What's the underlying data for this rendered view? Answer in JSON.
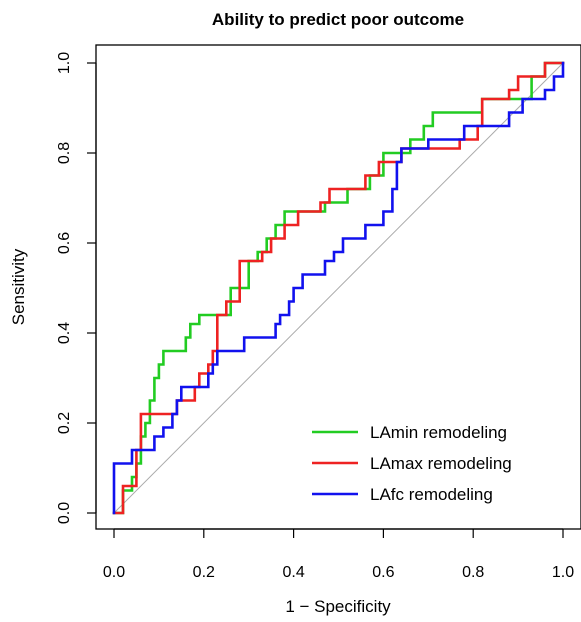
{
  "chart_data": {
    "type": "line",
    "title": "Ability to predict poor outcome",
    "xlabel": "1 − Specificity",
    "ylabel": "Sensitivity",
    "xlim": [
      0,
      1
    ],
    "ylim": [
      0,
      1
    ],
    "x_ticks": [
      "0.0",
      "0.2",
      "0.4",
      "0.6",
      "0.8",
      "1.0"
    ],
    "y_ticks": [
      "0.0",
      "0.2",
      "0.4",
      "0.6",
      "0.8",
      "1.0"
    ],
    "grid": false,
    "legend_position": "bottom-right",
    "reference_line": {
      "x": [
        0,
        1
      ],
      "y": [
        0,
        1
      ],
      "color": "#aaaaaa"
    },
    "series": [
      {
        "name": "LAmin remodeling",
        "color": "#22cc22",
        "x": [
          0.0,
          0.02,
          0.02,
          0.04,
          0.04,
          0.05,
          0.05,
          0.06,
          0.06,
          0.07,
          0.07,
          0.08,
          0.08,
          0.09,
          0.09,
          0.1,
          0.1,
          0.11,
          0.11,
          0.16,
          0.16,
          0.17,
          0.17,
          0.19,
          0.19,
          0.26,
          0.26,
          0.28,
          0.28,
          0.3,
          0.3,
          0.32,
          0.32,
          0.34,
          0.34,
          0.36,
          0.36,
          0.38,
          0.38,
          0.47,
          0.47,
          0.52,
          0.52,
          0.57,
          0.57,
          0.6,
          0.6,
          0.66,
          0.66,
          0.69,
          0.69,
          0.71,
          0.71,
          0.74,
          0.74,
          0.82,
          0.82,
          0.93,
          0.93,
          0.96,
          0.96,
          1.0
        ],
        "y": [
          0.0,
          0.0,
          0.05,
          0.05,
          0.08,
          0.08,
          0.11,
          0.11,
          0.17,
          0.17,
          0.2,
          0.2,
          0.25,
          0.25,
          0.3,
          0.3,
          0.33,
          0.33,
          0.36,
          0.36,
          0.39,
          0.39,
          0.42,
          0.42,
          0.44,
          0.44,
          0.5,
          0.5,
          0.5,
          0.5,
          0.56,
          0.56,
          0.58,
          0.58,
          0.61,
          0.61,
          0.64,
          0.64,
          0.67,
          0.67,
          0.69,
          0.69,
          0.72,
          0.72,
          0.75,
          0.75,
          0.8,
          0.8,
          0.83,
          0.83,
          0.86,
          0.86,
          0.89,
          0.89,
          0.89,
          0.89,
          0.92,
          0.92,
          0.97,
          0.97,
          1.0,
          1.0
        ]
      },
      {
        "name": "LAmax remodeling",
        "color": "#ee2222",
        "x": [
          0.0,
          0.02,
          0.02,
          0.05,
          0.05,
          0.06,
          0.06,
          0.14,
          0.14,
          0.18,
          0.18,
          0.19,
          0.19,
          0.21,
          0.21,
          0.22,
          0.22,
          0.23,
          0.23,
          0.25,
          0.25,
          0.28,
          0.28,
          0.33,
          0.33,
          0.35,
          0.35,
          0.38,
          0.38,
          0.41,
          0.41,
          0.46,
          0.46,
          0.48,
          0.48,
          0.56,
          0.56,
          0.59,
          0.59,
          0.62,
          0.62,
          0.64,
          0.64,
          0.77,
          0.77,
          0.81,
          0.81,
          0.82,
          0.82,
          0.88,
          0.88,
          0.9,
          0.9,
          0.96,
          0.96,
          1.0
        ],
        "y": [
          0.0,
          0.0,
          0.06,
          0.06,
          0.14,
          0.14,
          0.22,
          0.22,
          0.25,
          0.25,
          0.28,
          0.28,
          0.31,
          0.31,
          0.33,
          0.33,
          0.36,
          0.36,
          0.44,
          0.44,
          0.47,
          0.47,
          0.56,
          0.56,
          0.58,
          0.58,
          0.61,
          0.61,
          0.64,
          0.64,
          0.67,
          0.67,
          0.69,
          0.69,
          0.72,
          0.72,
          0.75,
          0.75,
          0.78,
          0.78,
          0.78,
          0.78,
          0.81,
          0.81,
          0.83,
          0.83,
          0.86,
          0.86,
          0.92,
          0.92,
          0.94,
          0.94,
          0.97,
          0.97,
          1.0,
          1.0
        ]
      },
      {
        "name": "LAfc remodeling",
        "color": "#1111ee",
        "x": [
          0.0,
          0.0,
          0.04,
          0.04,
          0.06,
          0.06,
          0.09,
          0.09,
          0.11,
          0.11,
          0.13,
          0.13,
          0.14,
          0.14,
          0.15,
          0.15,
          0.17,
          0.17,
          0.21,
          0.21,
          0.22,
          0.22,
          0.23,
          0.23,
          0.24,
          0.24,
          0.29,
          0.29,
          0.33,
          0.33,
          0.36,
          0.36,
          0.37,
          0.37,
          0.39,
          0.39,
          0.4,
          0.4,
          0.42,
          0.42,
          0.47,
          0.47,
          0.49,
          0.49,
          0.51,
          0.51,
          0.53,
          0.53,
          0.56,
          0.56,
          0.6,
          0.6,
          0.62,
          0.62,
          0.63,
          0.63,
          0.64,
          0.64,
          0.7,
          0.7,
          0.78,
          0.78,
          0.8,
          0.8,
          0.88,
          0.88,
          0.91,
          0.91,
          0.96,
          0.96,
          0.98,
          0.98,
          1.0,
          1.0
        ],
        "y": [
          0.0,
          0.11,
          0.11,
          0.14,
          0.14,
          0.14,
          0.14,
          0.17,
          0.17,
          0.19,
          0.19,
          0.22,
          0.22,
          0.25,
          0.25,
          0.28,
          0.28,
          0.28,
          0.28,
          0.31,
          0.31,
          0.33,
          0.33,
          0.36,
          0.36,
          0.36,
          0.36,
          0.39,
          0.39,
          0.39,
          0.39,
          0.42,
          0.42,
          0.44,
          0.44,
          0.47,
          0.47,
          0.5,
          0.5,
          0.53,
          0.53,
          0.56,
          0.56,
          0.58,
          0.58,
          0.61,
          0.61,
          0.61,
          0.61,
          0.64,
          0.64,
          0.67,
          0.67,
          0.72,
          0.72,
          0.78,
          0.78,
          0.81,
          0.81,
          0.83,
          0.83,
          0.86,
          0.86,
          0.86,
          0.86,
          0.89,
          0.89,
          0.92,
          0.92,
          0.94,
          0.94,
          0.97,
          0.97,
          1.0
        ]
      }
    ]
  }
}
